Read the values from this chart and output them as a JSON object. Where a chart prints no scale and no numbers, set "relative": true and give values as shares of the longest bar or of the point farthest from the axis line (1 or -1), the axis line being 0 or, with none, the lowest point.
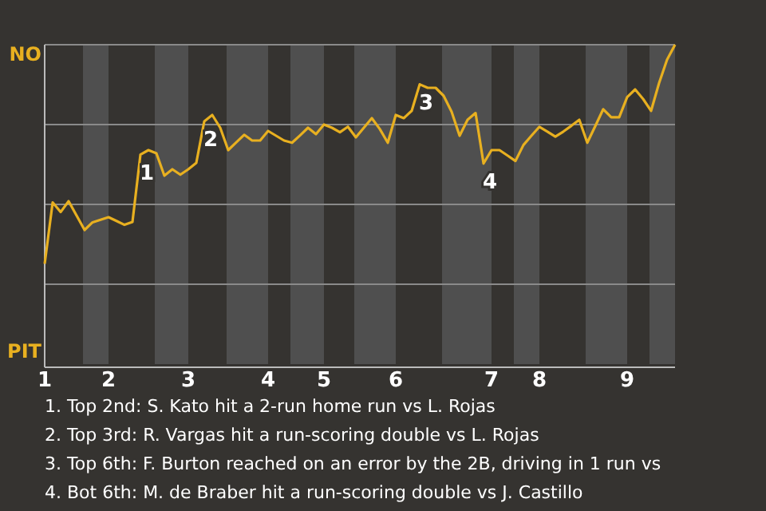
{
  "chart_data": {
    "type": "line",
    "relative": true,
    "categories": [
      "1",
      null,
      null,
      null,
      null,
      null,
      null,
      null,
      "2",
      null,
      null,
      null,
      null,
      null,
      null,
      null,
      null,
      null,
      "3",
      null,
      null,
      null,
      null,
      null,
      null,
      null,
      null,
      null,
      "4",
      null,
      null,
      null,
      null,
      null,
      null,
      "5",
      null,
      null,
      null,
      null,
      null,
      null,
      null,
      null,
      "6",
      null,
      null,
      null,
      null,
      null,
      null,
      null,
      null,
      null,
      null,
      null,
      "7",
      null,
      null,
      null,
      null,
      null,
      "8",
      null,
      null,
      null,
      null,
      null,
      null,
      null,
      null,
      null,
      null,
      "9",
      null,
      null,
      null,
      null,
      null,
      null
    ],
    "marker": "none",
    "line_style": "solid",
    "series": [
      {
        "color": "#e8b020",
        "values": [
          0.314,
          0.506,
          0.476,
          0.51,
          0.465,
          0.42,
          0.444,
          0.452,
          0.46,
          0.448,
          0.436,
          0.445,
          0.656,
          0.67,
          0.66,
          0.59,
          0.61,
          0.593,
          0.61,
          0.63,
          0.76,
          0.78,
          0.74,
          0.67,
          0.694,
          0.718,
          0.7,
          0.7,
          0.73,
          0.715,
          0.7,
          0.693,
          0.716,
          0.74,
          0.72,
          0.75,
          0.74,
          0.726,
          0.743,
          0.71,
          0.74,
          0.77,
          0.736,
          0.693,
          0.78,
          0.77,
          0.793,
          0.876,
          0.865,
          0.865,
          0.84,
          0.79,
          0.715,
          0.765,
          0.786,
          0.628,
          0.67,
          0.67,
          0.653,
          0.636,
          0.686,
          0.715,
          0.743,
          0.728,
          0.712,
          0.728,
          0.746,
          0.765,
          0.693,
          0.745,
          0.798,
          0.773,
          0.773,
          0.836,
          0.86,
          0.83,
          0.793,
          0.88,
          0.953,
          1
        ],
        "name": null
      }
    ],
    "ref_lines": [
      {
        "axis": "y",
        "value": 0.25,
        "color": "#8a8a8a"
      },
      {
        "axis": "y",
        "value": 0.5,
        "color": "#8a8a8a"
      },
      {
        "axis": "y",
        "value": 0.75,
        "color": "#8a8a8a"
      },
      {
        "axis": "y",
        "value": 1,
        "color": "#8a8a8a"
      }
    ],
    "annotations": [
      {
        "text": "1",
        "y": 0.656
      },
      {
        "text": "2",
        "y": 0.76
      },
      {
        "text": "3",
        "y": 0.876
      },
      {
        "text": "4",
        "y": 0.628
      },
      "NO",
      "PIT",
      "1. Top 2nd: S. Kato hit a 2-run home run vs L. Rojas",
      "2. Top 3rd: R. Vargas hit a run-scoring double vs L. Rojas",
      "3. Top 6th: F. Burton reached on an error by the 2B, driving in 1 run vs",
      "4. Bot 6th: M. de Braber hit a run-scoring double vs J. Castillo"
    ]
  }
}
